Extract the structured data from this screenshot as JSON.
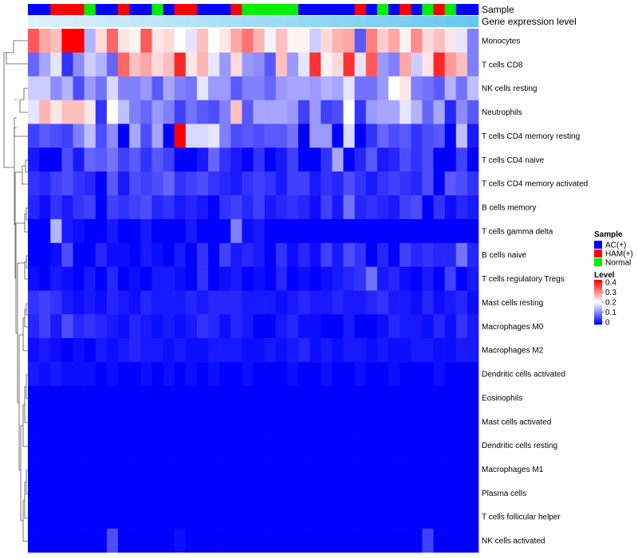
{
  "chart_data": {
    "type": "heatmap",
    "title": "",
    "annotation_tracks": [
      "Sample",
      "Gene expression level"
    ],
    "rows": [
      "Monocytes",
      "T cells CD8",
      "NK cells resting",
      "Neutrophils",
      "T cells CD4 memory resting",
      "T cells CD4 naive",
      "T cells CD4 memory activated",
      "B cells memory",
      "T cells gamma delta",
      "B cells naive",
      "T cells regulatory  Tregs",
      "Mast cells resting",
      "Macrophages M0",
      "Macrophages M2",
      "Dendritic cells activated",
      "Eosinophils",
      "Mast cells activated",
      "Dendritic cells resting",
      "Macrophages M1",
      "Plasma cells",
      "T cells follicular helper",
      "NK cells activated"
    ],
    "samples": [
      "AC",
      "AC",
      "HAM",
      "HAM",
      "HAM",
      "N",
      "AC",
      "AC",
      "HAM",
      "AC",
      "AC",
      "N",
      "AC",
      "HAM",
      "HAM",
      "AC",
      "AC",
      "AC",
      "HAM",
      "N",
      "N",
      "N",
      "N",
      "N",
      "AC",
      "AC",
      "AC",
      "AC",
      "AC",
      "HAM",
      "AC",
      "N",
      "AC",
      "HAM",
      "AC",
      "N",
      "HAM",
      "N",
      "AC",
      "AC"
    ],
    "gene_expression_level": [
      0.1,
      0.12,
      0.13,
      0.13,
      0.14,
      0.15,
      0.16,
      0.17,
      0.18,
      0.19,
      0.2,
      0.21,
      0.22,
      0.22,
      0.23,
      0.24,
      0.25,
      0.26,
      0.27,
      0.28,
      0.29,
      0.3,
      0.3,
      0.31,
      0.32,
      0.33,
      0.34,
      0.35,
      0.36,
      0.37,
      0.38,
      0.38,
      0.39,
      0.4,
      0.41,
      0.42,
      0.43,
      0.44,
      0.45,
      0.46
    ],
    "values": [
      [
        0.33,
        0.27,
        0.25,
        0.4,
        0.4,
        0.14,
        0.23,
        0.32,
        0.22,
        0.21,
        0.33,
        0.22,
        0.23,
        0.2,
        0.18,
        0.25,
        0.2,
        0.22,
        0.27,
        0.31,
        0.26,
        0.19,
        0.25,
        0.21,
        0.21,
        0.16,
        0.23,
        0.26,
        0.27,
        0.07,
        0.3,
        0.24,
        0.27,
        0.21,
        0.29,
        0.23,
        0.25,
        0.22,
        0.18,
        0.1
      ],
      [
        0.08,
        0.13,
        0.18,
        0.04,
        0.11,
        0.16,
        0.14,
        0.08,
        0.32,
        0.25,
        0.27,
        0.23,
        0.25,
        0.37,
        0.22,
        0.26,
        0.18,
        0.12,
        0.23,
        0.12,
        0.11,
        0.07,
        0.25,
        0.12,
        0.18,
        0.36,
        0.21,
        0.23,
        0.36,
        0.18,
        0.33,
        0.12,
        0.1,
        0.27,
        0.16,
        0.22,
        0.37,
        0.28,
        0.25,
        0.1
      ],
      [
        0.16,
        0.16,
        0.11,
        0.14,
        0.06,
        0.12,
        0.09,
        0.17,
        0.1,
        0.1,
        0.12,
        0.07,
        0.13,
        0.1,
        0.09,
        0.18,
        0.12,
        0.12,
        0.07,
        0.1,
        0.1,
        0.08,
        0.12,
        0.13,
        0.13,
        0.12,
        0.14,
        0.13,
        0.18,
        0.09,
        0.09,
        0.12,
        0.2,
        0.22,
        0.1,
        0.09,
        0.07,
        0.14,
        0.09,
        0.15
      ],
      [
        0.18,
        0.26,
        0.22,
        0.25,
        0.25,
        0.22,
        0.04,
        0.2,
        0.15,
        0.1,
        0.08,
        0.12,
        0.1,
        0.05,
        0.09,
        0.07,
        0.06,
        0.1,
        0.25,
        0.07,
        0.13,
        0.13,
        0.13,
        0.12,
        0.05,
        0.12,
        0.05,
        0.06,
        0.2,
        0.04,
        0.12,
        0.13,
        0.13,
        0.18,
        0.14,
        0.08,
        0.13,
        0.03,
        0.11,
        0.07
      ],
      [
        0.05,
        0.07,
        0.06,
        0.05,
        0.1,
        0.15,
        0.06,
        0.11,
        0.0,
        0.13,
        0.06,
        0.13,
        0.0,
        0.4,
        0.17,
        0.17,
        0.18,
        0.1,
        0.06,
        0.07,
        0.06,
        0.07,
        0.07,
        0.09,
        0.0,
        0.12,
        0.12,
        0.0,
        0.17,
        0.0,
        0.04,
        0.08,
        0.06,
        0.07,
        0.04,
        0.06,
        0.07,
        0.0,
        0.15,
        0.02
      ],
      [
        0.02,
        0.0,
        0.0,
        0.06,
        0.02,
        0.08,
        0.07,
        0.09,
        0.05,
        0.07,
        0.04,
        0.07,
        0.05,
        0.0,
        0.0,
        0.02,
        0.08,
        0.04,
        0.02,
        0.0,
        0.04,
        0.0,
        0.02,
        0.05,
        0.0,
        0.0,
        0.04,
        0.13,
        0.0,
        0.03,
        0.07,
        0.02,
        0.03,
        0.06,
        0.04,
        0.06,
        0.0,
        0.0,
        0.05,
        0.0
      ],
      [
        0.04,
        0.03,
        0.05,
        0.06,
        0.04,
        0.03,
        0.0,
        0.07,
        0.02,
        0.06,
        0.05,
        0.06,
        0.08,
        0.04,
        0.05,
        0.06,
        0.04,
        0.03,
        0.02,
        0.04,
        0.05,
        0.04,
        0.02,
        0.05,
        0.05,
        0.02,
        0.04,
        0.03,
        0.06,
        0.04,
        0.02,
        0.04,
        0.05,
        0.04,
        0.03,
        0.06,
        0.0,
        0.07,
        0.06,
        0.04
      ],
      [
        0.03,
        0.01,
        0.04,
        0.02,
        0.04,
        0.05,
        0.0,
        0.05,
        0.04,
        0.05,
        0.06,
        0.03,
        0.04,
        0.02,
        0.03,
        0.02,
        0.0,
        0.04,
        0.05,
        0.03,
        0.05,
        0.02,
        0.03,
        0.04,
        0.03,
        0.01,
        0.05,
        0.02,
        0.09,
        0.03,
        0.04,
        0.03,
        0.02,
        0.05,
        0.06,
        0.0,
        0.04,
        0.01,
        0.03,
        0.02
      ],
      [
        0.0,
        0.0,
        0.14,
        0.02,
        0.01,
        0.0,
        0.0,
        0.02,
        0.0,
        0.0,
        0.02,
        0.0,
        0.0,
        0.0,
        0.02,
        0.0,
        0.0,
        0.0,
        0.1,
        0.01,
        0.02,
        0.0,
        0.0,
        0.0,
        0.0,
        0.0,
        0.0,
        0.0,
        0.0,
        0.0,
        0.0,
        0.0,
        0.0,
        0.0,
        0.0,
        0.0,
        0.0,
        0.0,
        0.0,
        0.0
      ],
      [
        0.0,
        0.0,
        0.01,
        0.06,
        0.0,
        0.0,
        0.03,
        0.01,
        0.01,
        0.0,
        0.02,
        0.01,
        0.0,
        0.02,
        0.0,
        0.04,
        0.0,
        0.05,
        0.02,
        0.03,
        0.02,
        0.0,
        0.04,
        0.01,
        0.03,
        0.01,
        0.05,
        0.02,
        0.06,
        0.04,
        0.0,
        0.03,
        0.0,
        0.05,
        0.03,
        0.04,
        0.03,
        0.03,
        0.09,
        0.03
      ],
      [
        0.01,
        0.0,
        0.02,
        0.01,
        0.0,
        0.02,
        0.0,
        0.03,
        0.0,
        0.01,
        0.0,
        0.02,
        0.02,
        0.01,
        0.0,
        0.04,
        0.0,
        0.01,
        0.02,
        0.0,
        0.01,
        0.0,
        0.03,
        0.0,
        0.01,
        0.0,
        0.01,
        0.02,
        0.03,
        0.04,
        0.09,
        0.02,
        0.03,
        0.01,
        0.0,
        0.02,
        0.0,
        0.05,
        0.0,
        0.02
      ],
      [
        0.04,
        0.05,
        0.04,
        0.02,
        0.01,
        0.02,
        0.01,
        0.03,
        0.02,
        0.01,
        0.03,
        0.02,
        0.02,
        0.02,
        0.03,
        0.02,
        0.03,
        0.03,
        0.03,
        0.02,
        0.02,
        0.02,
        0.01,
        0.02,
        0.03,
        0.02,
        0.02,
        0.03,
        0.02,
        0.02,
        0.03,
        0.04,
        0.02,
        0.02,
        0.01,
        0.03,
        0.01,
        0.02,
        0.03,
        0.01
      ],
      [
        0.03,
        0.05,
        0.02,
        0.06,
        0.03,
        0.04,
        0.03,
        0.02,
        0.01,
        0.03,
        0.02,
        0.01,
        0.02,
        0.01,
        0.02,
        0.04,
        0.03,
        0.01,
        0.03,
        0.02,
        0.0,
        0.0,
        0.02,
        0.03,
        0.01,
        0.01,
        0.0,
        0.0,
        0.02,
        0.0,
        0.0,
        0.01,
        0.03,
        0.02,
        0.02,
        0.01,
        0.03,
        0.01,
        0.04,
        0.02
      ],
      [
        0.01,
        0.02,
        0.01,
        0.0,
        0.01,
        0.0,
        0.02,
        0.01,
        0.02,
        0.03,
        0.02,
        0.02,
        0.01,
        0.02,
        0.01,
        0.01,
        0.02,
        0.02,
        0.02,
        0.01,
        0.01,
        0.02,
        0.01,
        0.02,
        0.03,
        0.01,
        0.02,
        0.01,
        0.02,
        0.02,
        0.01,
        0.02,
        0.01,
        0.01,
        0.02,
        0.02,
        0.01,
        0.01,
        0.02,
        0.02
      ],
      [
        0.02,
        0.01,
        0.02,
        0.01,
        0.01,
        0.01,
        0.0,
        0.01,
        0.0,
        0.0,
        0.01,
        0.0,
        0.01,
        0.0,
        0.01,
        0.0,
        0.01,
        0.0,
        0.0,
        0.01,
        0.0,
        0.0,
        0.0,
        0.01,
        0.0,
        0.0,
        0.01,
        0.0,
        0.0,
        0.01,
        0.0,
        0.0,
        0.01,
        0.0,
        0.0,
        0.0,
        0.01,
        0.0,
        0.0,
        0.0
      ],
      [
        0,
        0,
        0,
        0,
        0,
        0,
        0,
        0,
        0,
        0,
        0,
        0,
        0,
        0,
        0,
        0,
        0,
        0,
        0,
        0,
        0,
        0,
        0,
        0,
        0,
        0,
        0,
        0,
        0,
        0,
        0,
        0,
        0,
        0,
        0,
        0,
        0,
        0,
        0,
        0
      ],
      [
        0,
        0,
        0,
        0,
        0,
        0,
        0,
        0,
        0,
        0,
        0,
        0,
        0,
        0,
        0,
        0,
        0,
        0,
        0,
        0,
        0,
        0,
        0,
        0,
        0,
        0,
        0,
        0,
        0,
        0,
        0,
        0,
        0,
        0,
        0,
        0,
        0,
        0,
        0,
        0
      ],
      [
        0,
        0,
        0,
        0,
        0,
        0,
        0,
        0,
        0,
        0,
        0,
        0,
        0,
        0,
        0,
        0,
        0,
        0,
        0,
        0,
        0,
        0,
        0,
        0,
        0,
        0,
        0,
        0,
        0,
        0,
        0,
        0,
        0,
        0,
        0,
        0,
        0,
        0,
        0,
        0
      ],
      [
        0,
        0,
        0,
        0,
        0,
        0,
        0,
        0,
        0,
        0,
        0,
        0,
        0,
        0,
        0,
        0,
        0,
        0,
        0,
        0,
        0,
        0,
        0,
        0,
        0,
        0,
        0,
        0,
        0,
        0,
        0,
        0,
        0,
        0,
        0,
        0,
        0,
        0,
        0,
        0
      ],
      [
        0,
        0,
        0,
        0,
        0,
        0,
        0,
        0,
        0,
        0,
        0,
        0,
        0,
        0,
        0,
        0,
        0,
        0,
        0,
        0,
        0,
        0,
        0,
        0,
        0,
        0,
        0,
        0,
        0,
        0,
        0,
        0,
        0,
        0,
        0,
        0,
        0,
        0,
        0,
        0
      ],
      [
        0,
        0,
        0,
        0,
        0,
        0,
        0,
        0,
        0,
        0,
        0,
        0,
        0,
        0,
        0,
        0,
        0,
        0,
        0,
        0,
        0,
        0,
        0,
        0,
        0,
        0,
        0,
        0,
        0,
        0,
        0,
        0,
        0,
        0,
        0,
        0,
        0,
        0,
        0,
        0
      ],
      [
        0,
        0,
        0,
        0,
        0,
        0,
        0,
        0.06,
        0,
        0,
        0,
        0,
        0,
        0.01,
        0,
        0,
        0,
        0,
        0,
        0,
        0,
        0,
        0,
        0,
        0,
        0,
        0,
        0,
        0,
        0,
        0,
        0,
        0,
        0,
        0,
        0.05,
        0,
        0,
        0,
        0
      ]
    ],
    "color_scale": {
      "min": 0,
      "max": 0.4,
      "low": "#0000ff",
      "mid": "#ffffff",
      "high": "#ff0000",
      "mid_value": 0.2
    },
    "legend": {
      "sample_title": "Sample",
      "sample_entries": [
        {
          "key": "AC",
          "label": "AC(+)",
          "color": "#0000ff"
        },
        {
          "key": "HAM",
          "label": "HAM(+)",
          "color": "#ff0000"
        },
        {
          "key": "N",
          "label": "Normal",
          "color": "#00ee00"
        }
      ],
      "level_title": "Level",
      "level_ticks": [
        "0.4",
        "0.3",
        "0.2",
        "0.1",
        "0"
      ],
      "gene_track_colors": {
        "low": "#e0f2fb",
        "high": "#66c8ee"
      }
    }
  }
}
